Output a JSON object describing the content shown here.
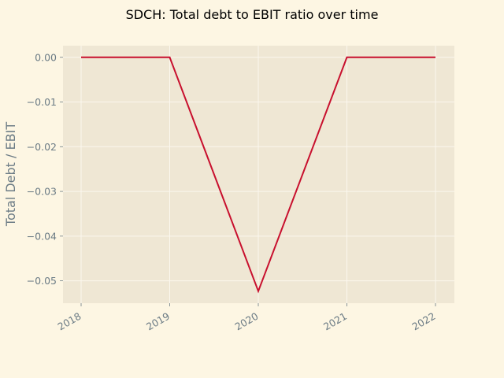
{
  "chart_data": {
    "type": "line",
    "title": "SDCH: Total debt to EBIT ratio over time",
    "xlabel": "",
    "ylabel": "Total Debt / EBIT",
    "x": [
      "2018",
      "2019",
      "2020",
      "2021",
      "2022"
    ],
    "series": [
      {
        "values": [
          0.0,
          0.0,
          -0.0523,
          0.0,
          0.0
        ]
      }
    ],
    "ylim": [
      -0.055,
      0.0026
    ],
    "yticks": [
      0.0,
      -0.01,
      -0.02,
      -0.03,
      -0.04,
      -0.05
    ],
    "ytick_labels": [
      "0.00",
      "−0.01",
      "−0.02",
      "−0.03",
      "−0.04",
      "−0.05"
    ],
    "grid": true,
    "legend": "none",
    "colors": {
      "background": "#fdf6e3",
      "plot_area": "#efe7d4",
      "grid": "#fbf7ee",
      "line": "#c8102e",
      "tick_text": "#6b7b85"
    }
  }
}
